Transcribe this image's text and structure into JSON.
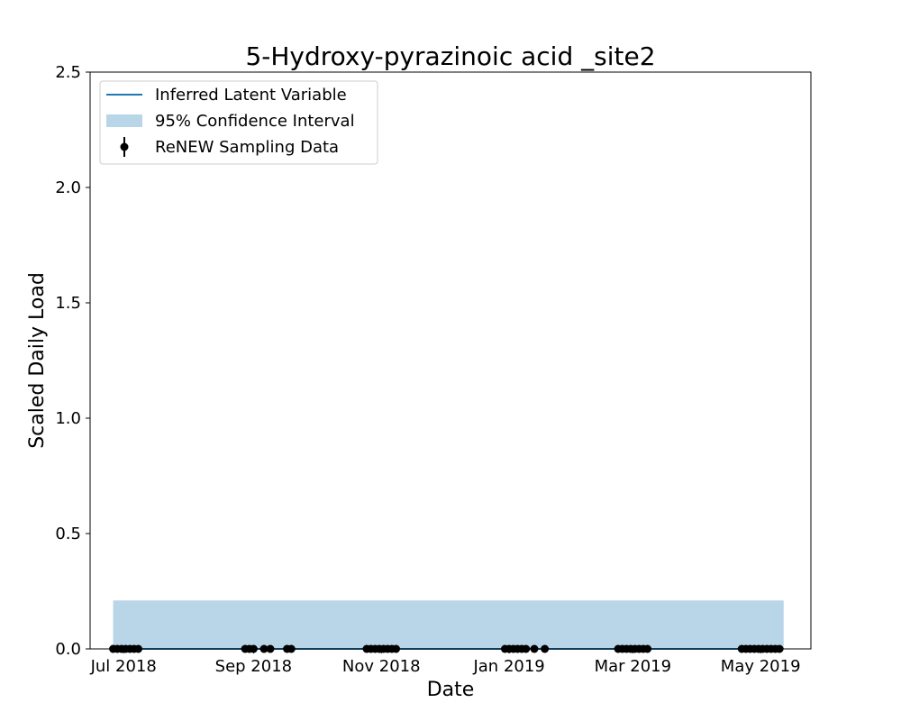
{
  "chart_data": {
    "type": "line",
    "title": "5-Hydroxy-pyrazinoic acid _site2",
    "xlabel": "Date",
    "ylabel": "Scaled Daily Load",
    "xlim": [
      "2018-06-15",
      "2019-05-25"
    ],
    "ylim": [
      0,
      2.5
    ],
    "yticks": [
      0.0,
      0.5,
      1.0,
      1.5,
      2.0,
      2.5
    ],
    "xticks": [
      {
        "date": "2018-07-01",
        "label": "Jul 2018"
      },
      {
        "date": "2018-09-01",
        "label": "Sep 2018"
      },
      {
        "date": "2018-11-01",
        "label": "Nov 2018"
      },
      {
        "date": "2019-01-01",
        "label": "Jan 2019"
      },
      {
        "date": "2019-03-01",
        "label": "Mar 2019"
      },
      {
        "date": "2019-05-01",
        "label": "May 2019"
      }
    ],
    "grid": false,
    "legend_position": "top-left",
    "legend": [
      {
        "label": "Inferred Latent Variable",
        "kind": "line"
      },
      {
        "label": "95% Confidence Interval",
        "kind": "band"
      },
      {
        "label": "ReNEW Sampling Data",
        "kind": "errorbar"
      }
    ],
    "series": [
      {
        "name": "Inferred Latent Variable",
        "type": "line",
        "color": "#1f77b4",
        "x": [
          "2018-06-26",
          "2019-05-12"
        ],
        "y": [
          0.0,
          0.0
        ]
      },
      {
        "name": "95% Confidence Interval",
        "type": "area",
        "color": "#b9d5e8",
        "x": [
          "2018-06-26",
          "2019-05-12"
        ],
        "lower": [
          0.0,
          0.0
        ],
        "upper": [
          0.21,
          0.21
        ]
      },
      {
        "name": "ReNEW Sampling Data",
        "type": "scatter",
        "color": "#000000",
        "x": [
          "2018-06-26",
          "2018-06-28",
          "2018-06-30",
          "2018-07-02",
          "2018-07-04",
          "2018-07-06",
          "2018-07-08",
          "2018-08-28",
          "2018-08-30",
          "2018-09-01",
          "2018-09-06",
          "2018-09-09",
          "2018-09-17",
          "2018-09-19",
          "2018-10-25",
          "2018-10-27",
          "2018-10-29",
          "2018-10-31",
          "2018-11-02",
          "2018-11-04",
          "2018-11-06",
          "2018-11-08",
          "2018-12-30",
          "2019-01-01",
          "2019-01-03",
          "2019-01-05",
          "2019-01-07",
          "2019-01-09",
          "2019-01-13",
          "2019-01-18",
          "2019-02-22",
          "2019-02-24",
          "2019-02-26",
          "2019-02-28",
          "2019-03-02",
          "2019-03-04",
          "2019-03-06",
          "2019-03-08",
          "2019-04-22",
          "2019-04-24",
          "2019-04-26",
          "2019-04-28",
          "2019-04-30",
          "2019-05-02",
          "2019-05-04",
          "2019-05-06",
          "2019-05-08",
          "2019-05-10"
        ],
        "y": [
          0,
          0,
          0,
          0,
          0,
          0,
          0,
          0,
          0,
          0,
          0,
          0,
          0,
          0,
          0,
          0,
          0,
          0,
          0,
          0,
          0,
          0,
          0,
          0,
          0,
          0,
          0,
          0,
          0,
          0,
          0,
          0,
          0,
          0,
          0,
          0,
          0,
          0,
          0,
          0,
          0,
          0,
          0,
          0,
          0,
          0,
          0,
          0
        ]
      }
    ]
  }
}
